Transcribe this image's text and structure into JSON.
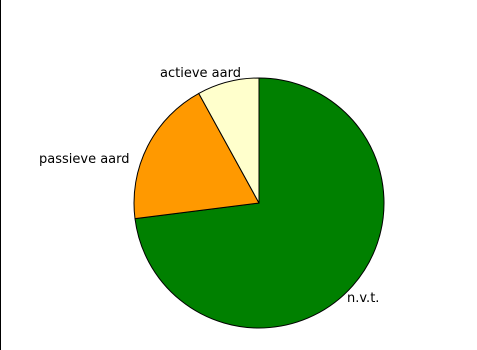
{
  "chart_data": {
    "type": "pie",
    "title": "",
    "legend": "none",
    "start_angle_deg": 0,
    "direction": "clockwise",
    "slices": [
      {
        "label": "n.v.t.",
        "value": 73,
        "color": "#008000"
      },
      {
        "label": "passieve aard",
        "value": 19,
        "color": "#ff9900"
      },
      {
        "label": "actieve aard",
        "value": 8,
        "color": "#ffffcc"
      }
    ]
  }
}
